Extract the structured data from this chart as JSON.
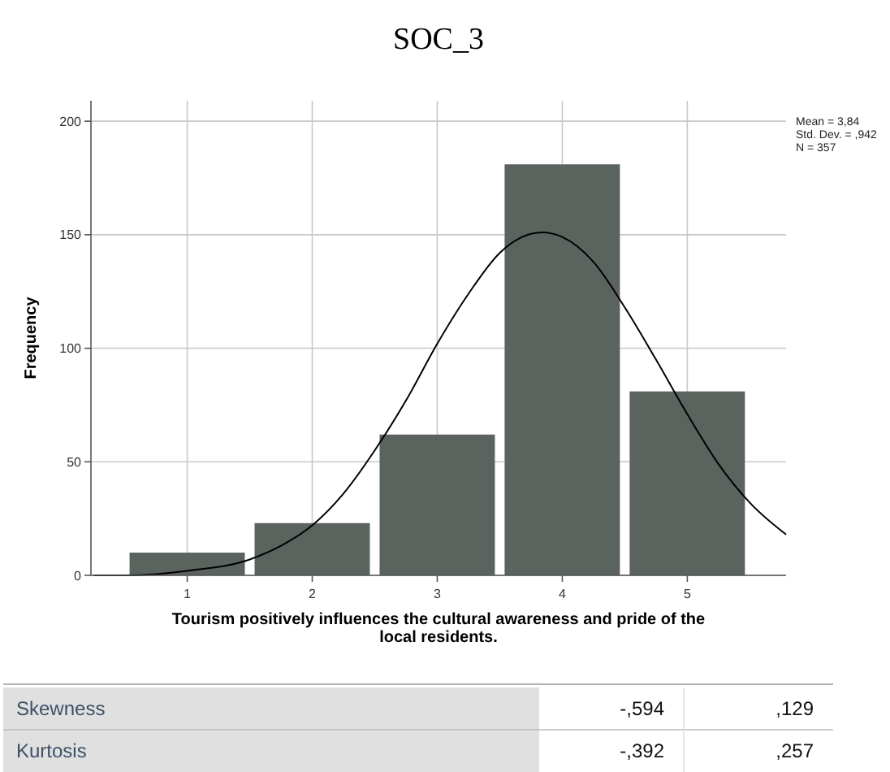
{
  "chart_data": [
    {
      "type": "histogram",
      "title": "SOC_3",
      "xlabel": "Tourism positively influences the cultural awareness and pride of the local residents.",
      "ylabel": "Frequency",
      "bins": [
        0.5,
        1.5,
        2.5,
        3.5,
        4.5,
        5.5
      ],
      "series": [
        {
          "type": "histogram",
          "color": "#5a635d",
          "values": [
            10,
            23,
            62,
            181,
            81
          ]
        },
        {
          "type": "line",
          "color": "#000000",
          "x": [
            0.25,
            0.5,
            1,
            1.5,
            1.75,
            2,
            2.25,
            2.5,
            2.75,
            3,
            3.25,
            3.5,
            3.84,
            4,
            4.25,
            4.5,
            4.75,
            5,
            5.25,
            5.5,
            5.79
          ],
          "values": [
            0,
            0,
            2,
            7,
            13,
            22,
            36,
            55,
            77,
            102,
            124,
            142,
            151,
            149,
            138,
            118,
            95,
            71,
            49,
            32,
            18
          ]
        }
      ],
      "xlim": [
        0.23,
        5.79
      ],
      "xticks": [
        1,
        2,
        3,
        4,
        5
      ],
      "ylim": [
        0,
        209
      ],
      "yticks": [
        0,
        50,
        100,
        150,
        200
      ],
      "grid": true,
      "annotations": [
        "Mean = 3,84",
        "Std. Dev. = ,942",
        "N = 357"
      ]
    },
    {
      "type": "other",
      "annotations": [
        "Skewness",
        "-,594",
        ",129",
        "Kurtosis",
        "-,392",
        ",257"
      ]
    }
  ]
}
